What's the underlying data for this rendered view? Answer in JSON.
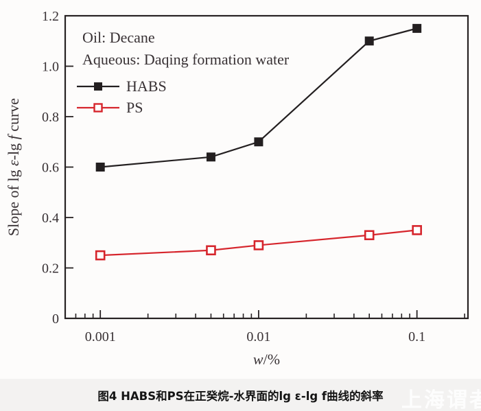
{
  "chart_data": {
    "type": "line",
    "title": "",
    "xlabel": "w/%",
    "xlabel_parts": [
      {
        "t": "w",
        "i": true
      },
      {
        "t": "/%",
        "i": false
      }
    ],
    "ylabel": "Slope of lg ε-lg f curve",
    "ylabel_parts": [
      {
        "t": "Slope of lg ",
        "i": false
      },
      {
        "t": "ε",
        "i": true
      },
      {
        "t": "-lg ",
        "i": false
      },
      {
        "t": "f",
        "i": true
      },
      {
        "t": " curve",
        "i": false
      }
    ],
    "x_scale": "log",
    "x_range": [
      0.0006,
      0.21
    ],
    "x_ticks": [
      0.001,
      0.01,
      0.1
    ],
    "x_tick_labels": [
      "0.001",
      "0.01",
      "0.1"
    ],
    "ylim": [
      0,
      1.2
    ],
    "y_tick_labels": [
      "0",
      "0.2",
      "0.4",
      "0.6",
      "0.8",
      "1.0",
      "1.2"
    ],
    "grid": false,
    "legend_position": "upper-left-inside",
    "annotations": [
      "Oil: Decane",
      "Aqueous: Daqing formation water"
    ],
    "x": [
      0.001,
      0.005,
      0.01,
      0.05,
      0.1
    ],
    "series": [
      {
        "name": "HABS",
        "values": [
          0.6,
          0.64,
          0.7,
          1.1,
          1.15
        ],
        "color": "#231f20",
        "marker": "filled-square"
      },
      {
        "name": "PS",
        "values": [
          0.25,
          0.27,
          0.29,
          0.33,
          0.35
        ],
        "color": "#d6252c",
        "marker": "open-square"
      }
    ]
  },
  "caption": {
    "text": "图4  HABS和PS在正癸烷-水界面的lg ε-lg f曲线的斜率"
  },
  "watermark": {
    "text": "上海谓者"
  },
  "colors": {
    "ink": "#272223",
    "text": "#383134",
    "habs": "#231f20",
    "ps": "#d6252c",
    "caption_bg": "#f3f2f1",
    "chart_bg": "#fdfcfb"
  }
}
